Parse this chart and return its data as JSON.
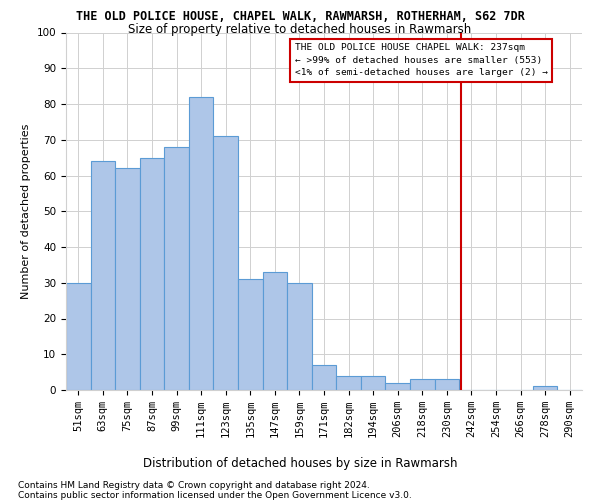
{
  "title": "THE OLD POLICE HOUSE, CHAPEL WALK, RAWMARSH, ROTHERHAM, S62 7DR",
  "subtitle": "Size of property relative to detached houses in Rawmarsh",
  "xlabel": "Distribution of detached houses by size in Rawmarsh",
  "ylabel": "Number of detached properties",
  "categories": [
    "51sqm",
    "63sqm",
    "75sqm",
    "87sqm",
    "99sqm",
    "111sqm",
    "123sqm",
    "135sqm",
    "147sqm",
    "159sqm",
    "171sqm",
    "182sqm",
    "194sqm",
    "206sqm",
    "218sqm",
    "230sqm",
    "242sqm",
    "254sqm",
    "266sqm",
    "278sqm",
    "290sqm"
  ],
  "values": [
    30,
    64,
    62,
    65,
    68,
    82,
    71,
    31,
    33,
    30,
    7,
    4,
    4,
    2,
    3,
    3,
    0,
    0,
    0,
    1,
    0
  ],
  "bar_color": "#aec6e8",
  "bar_edge_color": "#5b9bd5",
  "ylim": [
    0,
    100
  ],
  "yticks": [
    0,
    10,
    20,
    30,
    40,
    50,
    60,
    70,
    80,
    90,
    100
  ],
  "marker_label": "THE OLD POLICE HOUSE CHAPEL WALK: 237sqm",
  "marker_line1": "← >99% of detached houses are smaller (553)",
  "marker_line2": "<1% of semi-detached houses are larger (2) →",
  "footnote1": "Contains HM Land Registry data © Crown copyright and database right 2024.",
  "footnote2": "Contains public sector information licensed under the Open Government Licence v3.0.",
  "marker_color": "#cc0000",
  "bg_color": "#ffffff",
  "grid_color": "#d0d0d0",
  "title_fontsize": 8.5,
  "subtitle_fontsize": 8.5,
  "ylabel_fontsize": 8,
  "xlabel_fontsize": 8.5,
  "tick_fontsize": 7.5,
  "annotation_fontsize": 6.8,
  "footnote_fontsize": 6.5
}
